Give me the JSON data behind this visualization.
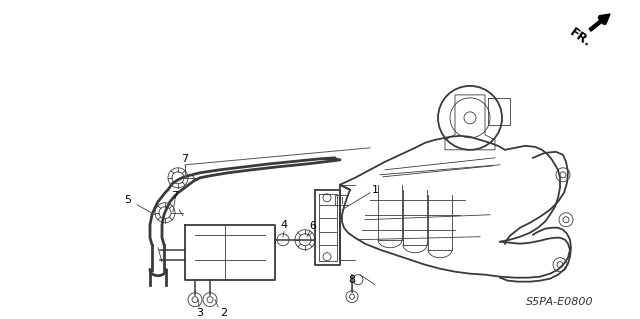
{
  "part_code": "S5PA-E0800",
  "fr_label": "FR.",
  "background_color": "#ffffff",
  "line_color": "#3a3a3a",
  "text_color": "#000000",
  "figsize": [
    6.4,
    3.19
  ],
  "dpi": 100
}
